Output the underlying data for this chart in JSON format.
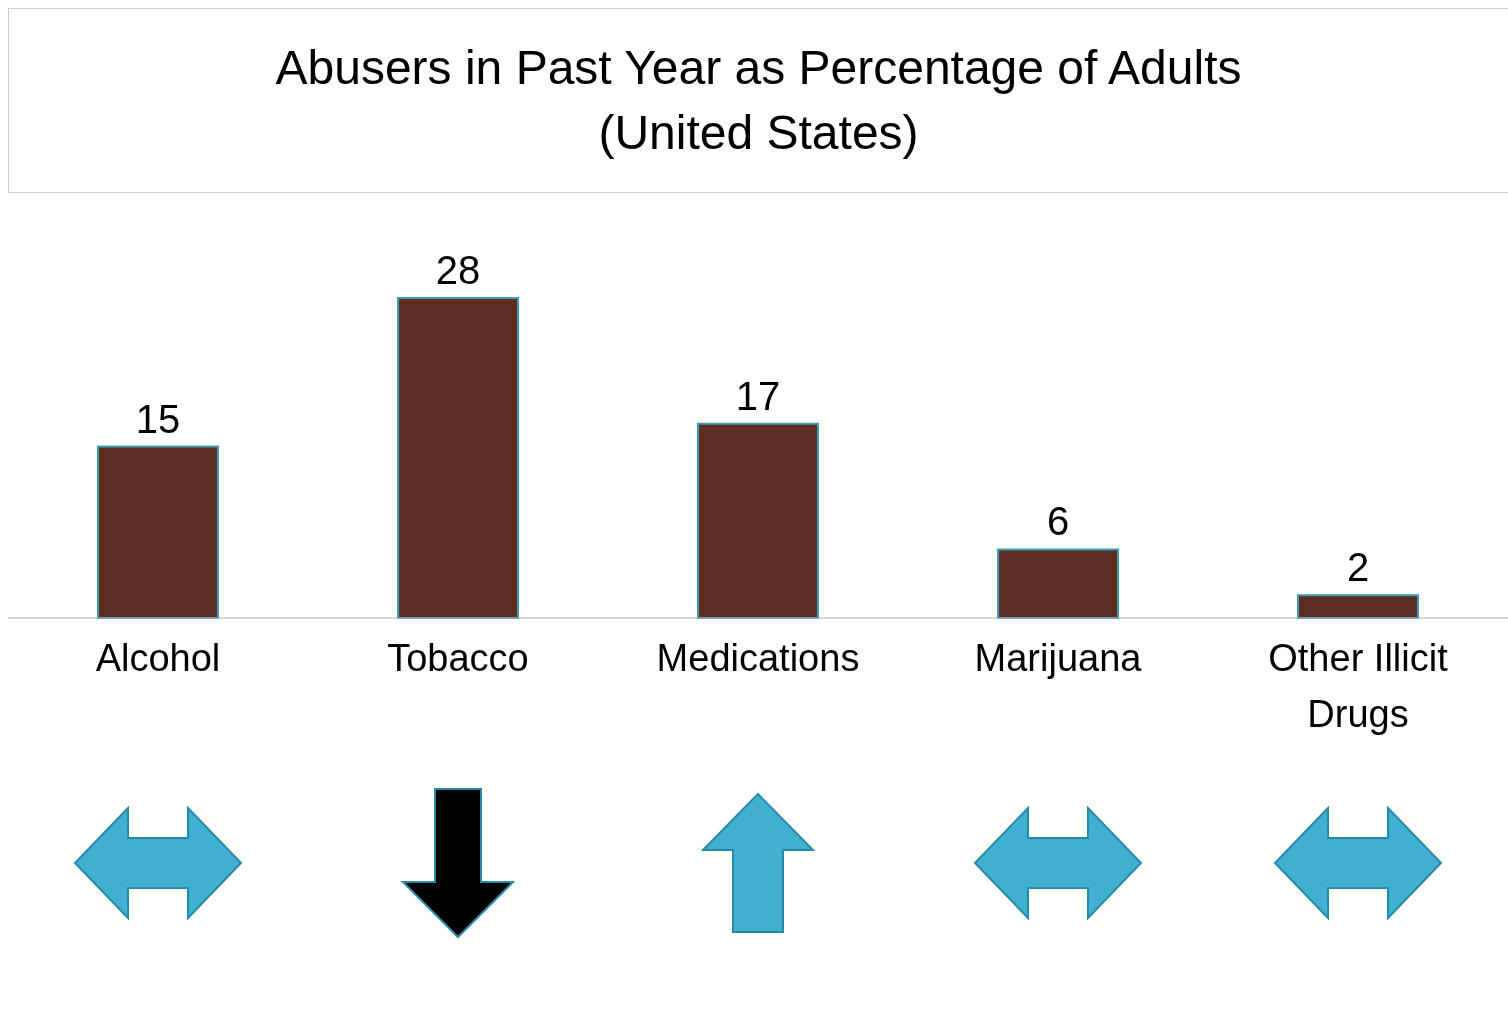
{
  "chart_data": {
    "type": "bar",
    "title": "Abusers in Past Year as Percentage of Adults\n(United States)",
    "categories": [
      "Alcohol",
      "Tobacco",
      "Medications",
      "Marijuana",
      "Other Illicit Drugs"
    ],
    "values": [
      15,
      28,
      17,
      6,
      2
    ],
    "color": "#5c2f22",
    "data_labels": true
  }
}
